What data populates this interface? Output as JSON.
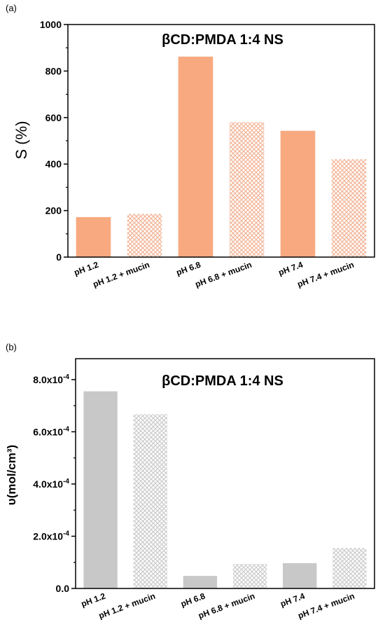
{
  "chart_data": [
    {
      "panel": "(a)",
      "type": "bar",
      "title": "βCD:PMDA 1:4 NS",
      "ylabel": "S (%)",
      "xlabel": "",
      "categories": [
        "pH 1.2",
        "pH 1.2 + mucin",
        "pH 6.8",
        "pH 6.8 + mucin",
        "pH 7.4",
        "pH 7.4 + mucin"
      ],
      "values": [
        172,
        186,
        862,
        580,
        543,
        421
      ],
      "hatched": [
        false,
        true,
        false,
        true,
        false,
        true
      ],
      "ylim": [
        0,
        1000
      ],
      "yticks": [
        0,
        200,
        400,
        600,
        800,
        1000
      ],
      "ytick_labels": [
        "0",
        "200",
        "400",
        "600",
        "800",
        "1000"
      ],
      "color": "#f8a980",
      "hatch_color": "#f3b699"
    },
    {
      "panel": "(b)",
      "type": "bar",
      "title": "βCD:PMDA 1:4 NS",
      "ylabel": "υ(mol/cm³)",
      "xlabel": "",
      "categories": [
        "pH 1.2",
        "pH 1.2 + mucin",
        "pH 6.8",
        "pH 6.8 + mucin",
        "pH 7.4",
        "pH 7.4 + mucin"
      ],
      "values": [
        0.000755,
        0.000667,
        4.8e-05,
        9.4e-05,
        9.7e-05,
        0.000155
      ],
      "hatched": [
        false,
        true,
        false,
        true,
        false,
        true
      ],
      "ylim": [
        0,
        0.00088
      ],
      "yticks": [
        0,
        0.0002,
        0.0004,
        0.0006,
        0.0008
      ],
      "ytick_labels": [
        {
          "base": "0.0",
          "exp": ""
        },
        {
          "base": "2.0x10",
          "exp": "-4"
        },
        {
          "base": "4.0x10",
          "exp": "-4"
        },
        {
          "base": "6.0x10",
          "exp": "-4"
        },
        {
          "base": "8.0x10",
          "exp": "-4"
        }
      ],
      "color": "#c8c8c8",
      "hatch_color": "#cdcdcd"
    }
  ]
}
